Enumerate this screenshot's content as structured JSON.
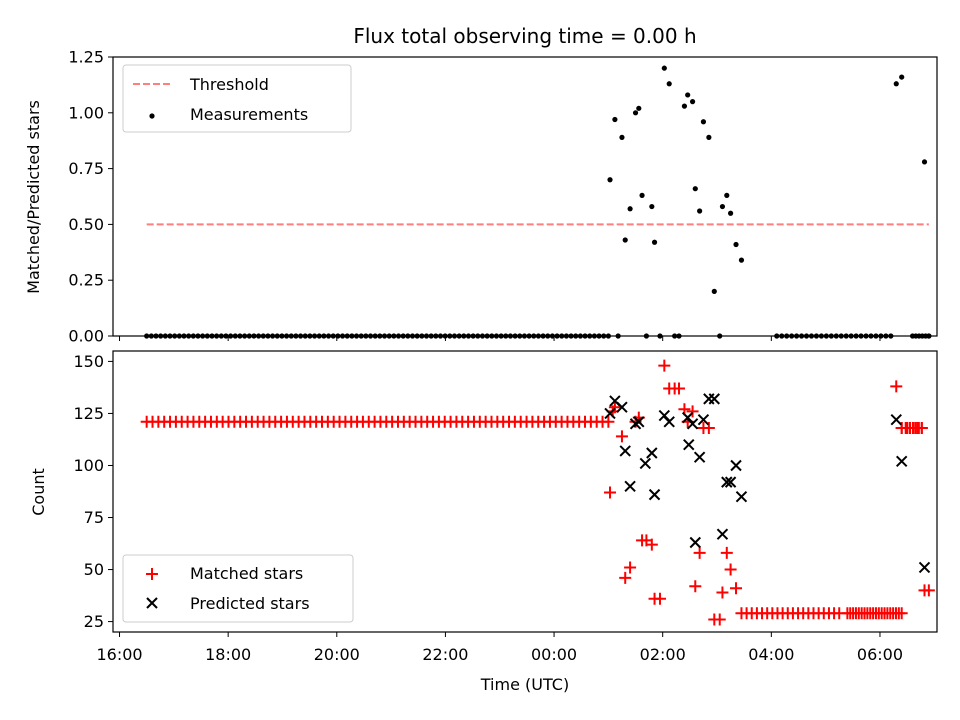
{
  "chart_data": [
    {
      "type": "scatter",
      "title": "Flux total observing time = 0.00 h",
      "xlabel": "",
      "ylabel": "Matched/Predicted stars",
      "xlim": [
        -0.12,
        15.05
      ],
      "ylim": [
        0,
        1.25
      ],
      "yticks": [
        0.0,
        0.25,
        0.5,
        0.75,
        1.0,
        1.25
      ],
      "ytick_labels": [
        "0.00",
        "0.25",
        "0.50",
        "0.75",
        "1.00",
        "1.25"
      ],
      "legend": {
        "position": "upper-left",
        "entries": [
          "Threshold",
          "Measurements"
        ]
      },
      "threshold": {
        "name": "Threshold",
        "y": 0.5,
        "x_range": [
          0.5,
          14.9
        ],
        "color": "#ff7f7f",
        "style": "dashed"
      },
      "zero_runs": [
        {
          "x_start": 0.5,
          "x_end": 9.0,
          "count": 100
        },
        {
          "x_start": 12.1,
          "x_end": 14.2,
          "count": 24
        },
        {
          "x_start": 14.6,
          "x_end": 14.9,
          "count": 6
        }
      ],
      "series": [
        {
          "name": "Measurements",
          "color": "#000000",
          "marker": "dot",
          "points": [
            [
              9.03,
              0.7
            ],
            [
              9.12,
              0.97
            ],
            [
              9.18,
              0.0
            ],
            [
              9.25,
              0.89
            ],
            [
              9.31,
              0.43
            ],
            [
              9.4,
              0.57
            ],
            [
              9.5,
              1.0
            ],
            [
              9.56,
              1.02
            ],
            [
              9.62,
              0.63
            ],
            [
              9.7,
              0.0
            ],
            [
              9.8,
              0.58
            ],
            [
              9.85,
              0.42
            ],
            [
              9.95,
              0.0
            ],
            [
              10.03,
              1.2
            ],
            [
              10.12,
              1.13
            ],
            [
              10.22,
              0.0
            ],
            [
              10.3,
              0.0
            ],
            [
              10.4,
              1.03
            ],
            [
              10.46,
              1.08
            ],
            [
              10.55,
              1.05
            ],
            [
              10.6,
              0.66
            ],
            [
              10.68,
              0.56
            ],
            [
              10.75,
              0.96
            ],
            [
              10.85,
              0.89
            ],
            [
              10.95,
              0.2
            ],
            [
              11.05,
              0.0
            ],
            [
              11.1,
              0.58
            ],
            [
              11.18,
              0.63
            ],
            [
              11.25,
              0.55
            ],
            [
              11.35,
              0.41
            ],
            [
              11.45,
              0.34
            ],
            [
              14.3,
              1.13
            ],
            [
              14.4,
              1.16
            ],
            [
              14.82,
              0.78
            ],
            [
              14.9,
              0.0
            ]
          ]
        }
      ]
    },
    {
      "type": "scatter",
      "title": "",
      "xlabel": "Time (UTC)",
      "ylabel": "Count",
      "xlim": [
        -0.12,
        15.05
      ],
      "ylim": [
        20,
        155
      ],
      "yticks": [
        25,
        50,
        75,
        100,
        125,
        150
      ],
      "ytick_labels": [
        "25",
        "50",
        "75",
        "100",
        "125",
        "150"
      ],
      "xticks": [
        0,
        2,
        4,
        6,
        8,
        10,
        12,
        14
      ],
      "xtick_labels": [
        "16:00",
        "18:00",
        "20:00",
        "22:00",
        "00:00",
        "02:00",
        "04:00",
        "06:00"
      ],
      "legend": {
        "position": "lower-left",
        "entries": [
          "Matched stars",
          "Predicted stars"
        ]
      },
      "runs": [
        {
          "series": "Matched stars",
          "x_start": 0.5,
          "x_end": 9.0,
          "count": 80,
          "y": 121
        },
        {
          "series": "Matched stars",
          "x_start": 11.45,
          "x_end": 13.25,
          "count": 20,
          "y": 29
        },
        {
          "series": "Matched stars",
          "x_start": 13.4,
          "x_end": 14.4,
          "count": 20,
          "y": 29
        },
        {
          "series": "Matched stars",
          "x_start": 14.4,
          "x_end": 14.77,
          "count": 6,
          "y": 118
        },
        {
          "series": "Matched stars",
          "x_start": 14.5,
          "x_end": 14.77,
          "count": 6,
          "y": 118
        }
      ],
      "series": [
        {
          "name": "Matched stars",
          "color": "#ff0000",
          "marker": "plus",
          "points": [
            [
              9.03,
              87
            ],
            [
              9.08,
              126
            ],
            [
              9.12,
              128
            ],
            [
              9.25,
              114
            ],
            [
              9.31,
              46
            ],
            [
              9.4,
              51
            ],
            [
              9.5,
              121
            ],
            [
              9.56,
              123
            ],
            [
              9.62,
              64
            ],
            [
              9.7,
              64
            ],
            [
              9.8,
              62
            ],
            [
              9.85,
              36
            ],
            [
              9.95,
              36
            ],
            [
              10.03,
              148
            ],
            [
              10.12,
              137
            ],
            [
              10.22,
              137
            ],
            [
              10.3,
              137
            ],
            [
              10.4,
              127
            ],
            [
              10.46,
              121
            ],
            [
              10.55,
              126
            ],
            [
              10.6,
              42
            ],
            [
              10.68,
              58
            ],
            [
              10.75,
              118
            ],
            [
              10.85,
              118
            ],
            [
              10.95,
              26
            ],
            [
              11.05,
              26
            ],
            [
              11.1,
              39
            ],
            [
              11.18,
              58
            ],
            [
              11.25,
              50
            ],
            [
              11.35,
              41
            ],
            [
              14.3,
              138
            ],
            [
              14.4,
              118
            ],
            [
              14.82,
              40
            ],
            [
              14.9,
              40
            ]
          ]
        },
        {
          "name": "Predicted stars",
          "color": "#000000",
          "marker": "x",
          "points": [
            [
              9.03,
              125
            ],
            [
              9.12,
              131
            ],
            [
              9.25,
              128
            ],
            [
              9.31,
              107
            ],
            [
              9.4,
              90
            ],
            [
              9.5,
              120
            ],
            [
              9.56,
              121
            ],
            [
              9.68,
              101
            ],
            [
              9.8,
              106
            ],
            [
              9.85,
              86
            ],
            [
              10.03,
              124
            ],
            [
              10.12,
              121
            ],
            [
              10.46,
              123
            ],
            [
              10.48,
              110
            ],
            [
              10.55,
              120
            ],
            [
              10.6,
              63
            ],
            [
              10.68,
              104
            ],
            [
              10.75,
              122
            ],
            [
              10.85,
              132
            ],
            [
              10.95,
              132
            ],
            [
              11.1,
              67
            ],
            [
              11.18,
              92
            ],
            [
              11.25,
              92
            ],
            [
              11.35,
              100
            ],
            [
              11.45,
              85
            ],
            [
              14.3,
              122
            ],
            [
              14.4,
              102
            ],
            [
              14.82,
              51
            ]
          ]
        }
      ]
    }
  ]
}
